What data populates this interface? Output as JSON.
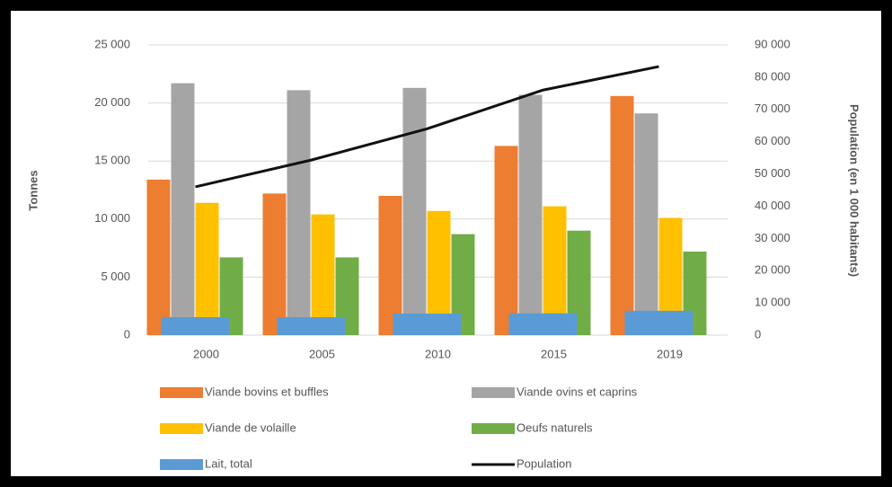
{
  "chart_data": {
    "type": "bar",
    "categories": [
      "2000",
      "2005",
      "2010",
      "2015",
      "2019"
    ],
    "series": [
      {
        "name": "Viande bovins et buffles",
        "color": "#ed7d31",
        "values": [
          13400,
          12200,
          12000,
          16300,
          20600
        ]
      },
      {
        "name": "Viande ovins et caprins",
        "color": "#a5a5a5",
        "values": [
          21700,
          21100,
          21300,
          20700,
          19100
        ]
      },
      {
        "name": "Viande de volaille",
        "color": "#ffc000",
        "values": [
          11400,
          10400,
          10700,
          11100,
          10100
        ]
      },
      {
        "name": "Oeufs naturels",
        "color": "#70ad47",
        "values": [
          6700,
          6700,
          8700,
          9000,
          7200
        ]
      },
      {
        "name": "Lait, total",
        "color": "#5b9bd5",
        "values": [
          1550,
          1550,
          1860,
          1880,
          2100
        ]
      },
      {
        "name": "Population",
        "color": "#111111",
        "type": "line",
        "axis": "y2",
        "values": [
          46000,
          54300,
          64000,
          76000,
          83300
        ]
      }
    ],
    "ylabel": "Tonnes",
    "y2label": "Population (en 1 000 habitants)",
    "ylim": [
      0,
      25000
    ],
    "yticks": [
      0,
      {
        "value": 5000,
        "label": "5 000"
      },
      {
        "value": 10000,
        "label": "10 000"
      },
      {
        "value": 15000,
        "label": "15 000"
      },
      {
        "value": 20000,
        "label": "20 000"
      },
      {
        "value": 25000,
        "label": "25 000"
      }
    ],
    "y2lim": [
      0,
      90000
    ],
    "y2ticks": [
      0,
      {
        "value": 10000,
        "label": "10 000"
      },
      {
        "value": 20000,
        "label": "20 000"
      },
      {
        "value": 30000,
        "label": "30 000"
      },
      {
        "value": 40000,
        "label": "40 000"
      },
      {
        "value": 50000,
        "label": "50 000"
      },
      {
        "value": 60000,
        "label": "60 000"
      },
      {
        "value": 70000,
        "label": "70 000"
      },
      {
        "value": 80000,
        "label": "80 000"
      },
      {
        "value": 90000,
        "label": "90 000"
      }
    ],
    "grid": true
  }
}
